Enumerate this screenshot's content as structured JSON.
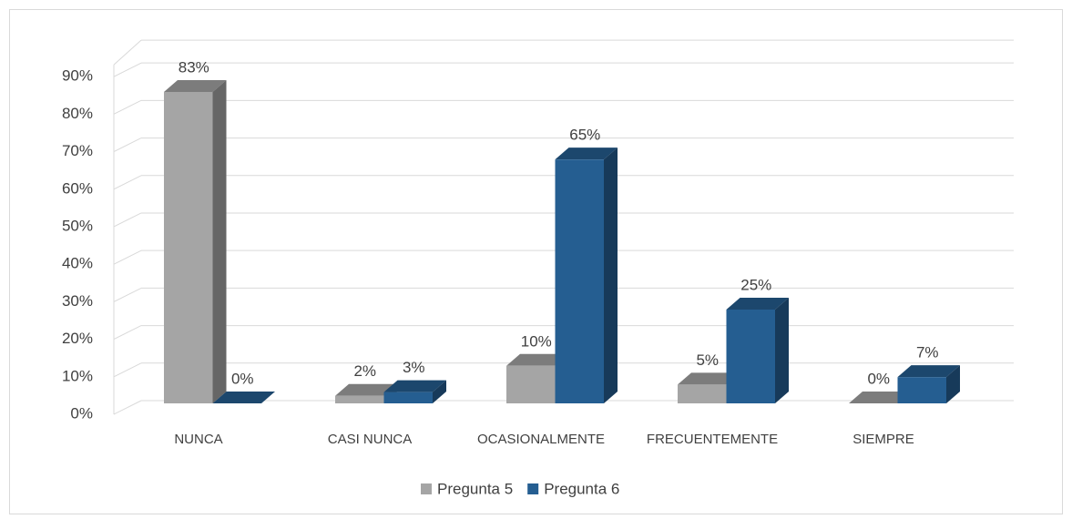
{
  "chart_data": {
    "type": "bar3d",
    "categories": [
      "NUNCA",
      "CASI NUNCA",
      "OCASIONALMENTE",
      "FRECUENTEMENTE",
      "SIEMPRE"
    ],
    "series": [
      {
        "name": "Pregunta 5",
        "color": "#a5a5a5",
        "values": [
          83,
          2,
          10,
          5,
          0
        ],
        "value_labels": [
          "83%",
          "2%",
          "10%",
          "5%",
          "0%"
        ]
      },
      {
        "name": "Pregunta 6",
        "color": "#255e91",
        "values": [
          0,
          3,
          65,
          25,
          7
        ],
        "value_labels": [
          "0%",
          "3%",
          "65%",
          "25%",
          "7%"
        ]
      }
    ],
    "ylim": [
      0,
      90
    ],
    "yticks": [
      {
        "value": 0,
        "label": "0%"
      },
      {
        "value": 10,
        "label": "10%"
      },
      {
        "value": 20,
        "label": "20%"
      },
      {
        "value": 30,
        "label": "30%"
      },
      {
        "value": 40,
        "label": "40%"
      },
      {
        "value": 50,
        "label": "50%"
      },
      {
        "value": 60,
        "label": "60%"
      },
      {
        "value": 70,
        "label": "70%"
      },
      {
        "value": 80,
        "label": "80%"
      },
      {
        "value": 90,
        "label": "90%"
      }
    ],
    "grid": true,
    "legend": "bottom"
  }
}
